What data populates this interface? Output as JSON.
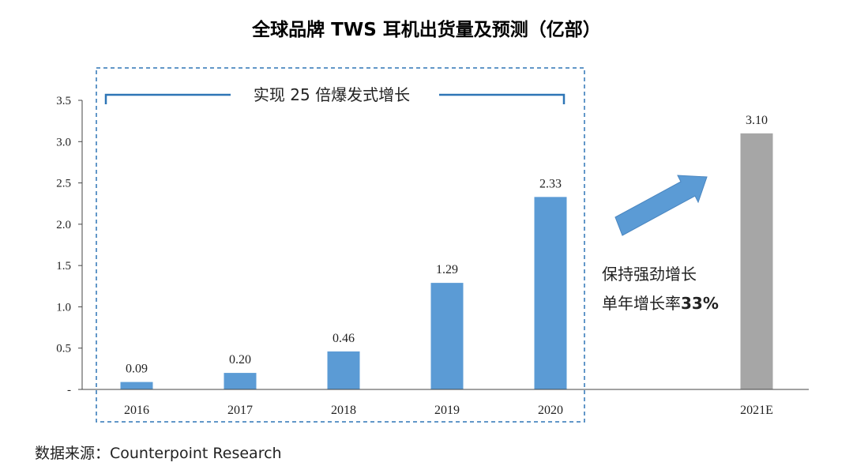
{
  "chart_data": {
    "type": "bar",
    "title": "全球品牌 TWS 耳机出货量及预测（亿部）",
    "categories": [
      "2016",
      "2017",
      "2018",
      "2019",
      "2020",
      "2021E"
    ],
    "values": [
      0.09,
      0.2,
      0.46,
      1.29,
      2.33,
      3.1
    ],
    "value_labels": [
      "0.09",
      "0.20",
      "0.46",
      "1.29",
      "2.33",
      "3.10"
    ],
    "bar_colors": [
      "#5b9bd5",
      "#5b9bd5",
      "#5b9bd5",
      "#5b9bd5",
      "#5b9bd5",
      "#a6a6a6"
    ],
    "ylim": [
      0,
      3.5
    ],
    "yticks": [
      0,
      0.5,
      1.0,
      1.5,
      2.0,
      2.5,
      3.0,
      3.5
    ],
    "ytick_labels": [
      "-",
      "0.5",
      "1.0",
      "1.5",
      "2.0",
      "2.5",
      "3.0",
      "3.5"
    ],
    "grid": false,
    "annotations": {
      "bracket_text": "实现 25 倍爆发式增长",
      "growth_line1": "保持强劲增长",
      "growth_line2_prefix": "单年增长率",
      "growth_line2_value": "33%"
    },
    "arrow_color": "#5b9bd5",
    "source": "数据来源：Counterpoint Research"
  }
}
